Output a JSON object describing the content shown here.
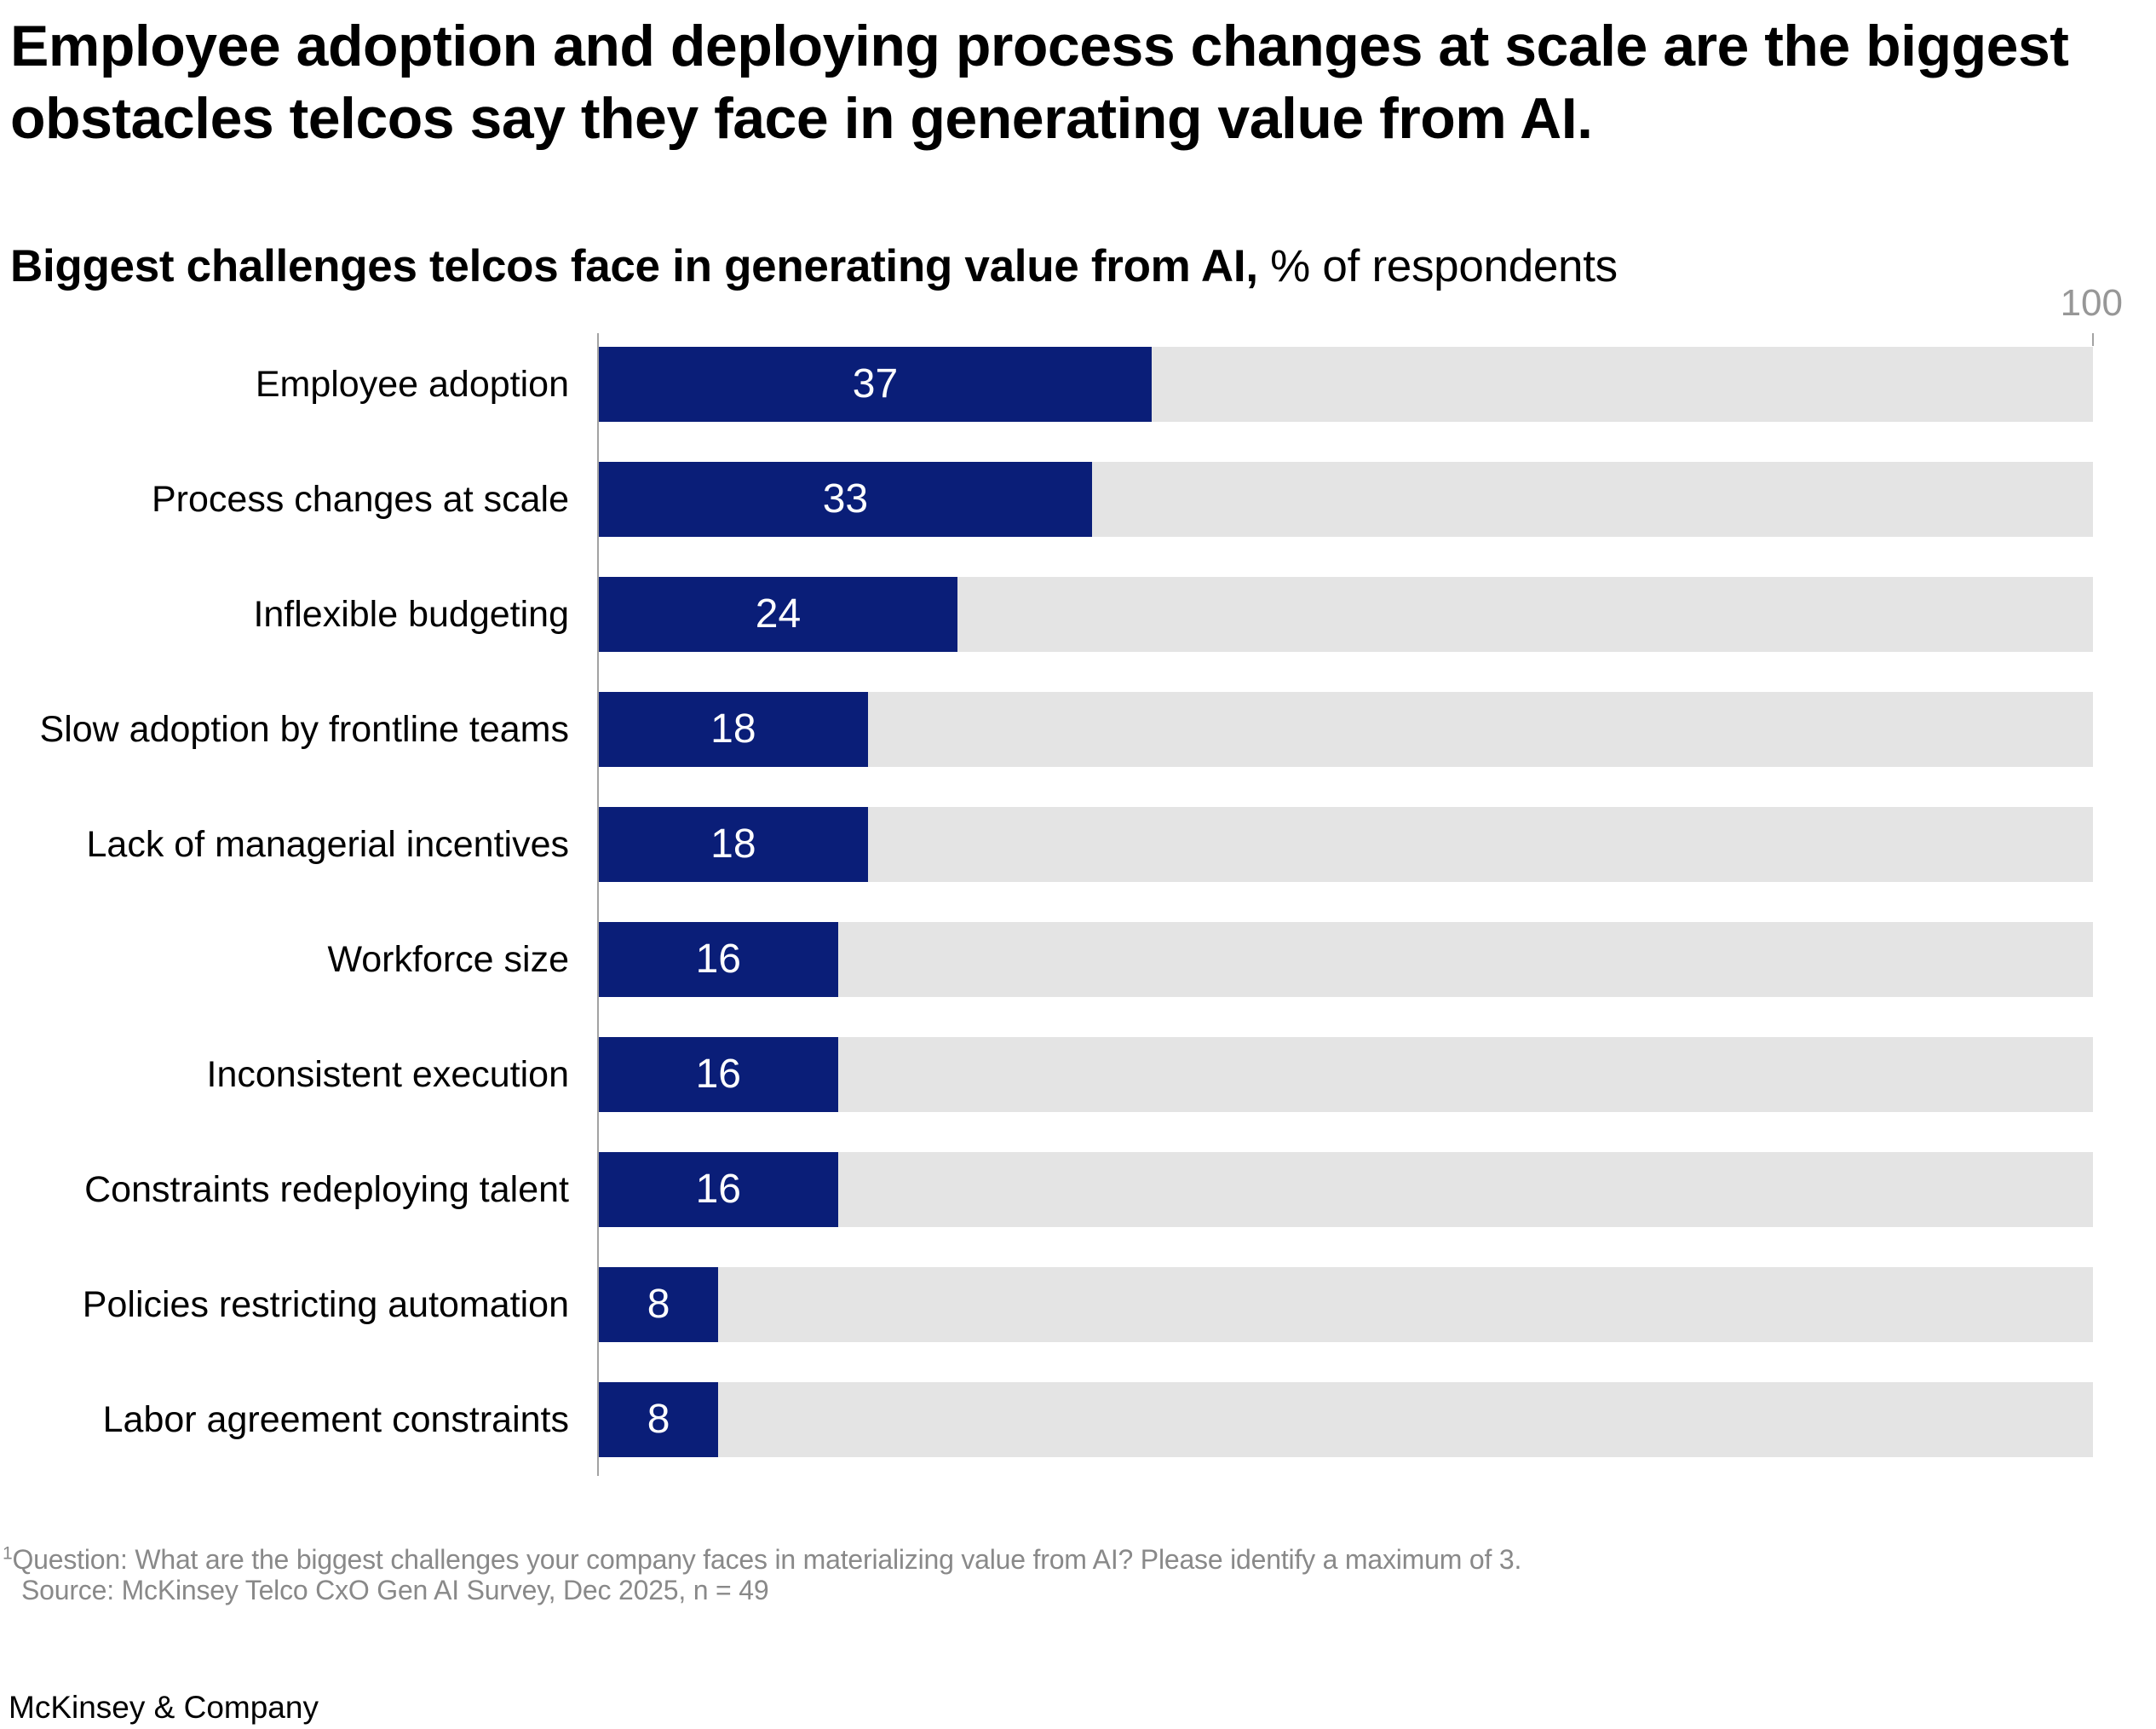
{
  "title_line1": "Employee adoption and deploying process changes at scale are the biggest",
  "title_line2": "obstacles telcos say they face in generating value from AI.",
  "subtitle_bold": "Biggest challenges telcos face in generating value from AI,",
  "subtitle_regular": " % of respondents",
  "axis_max_label": "100",
  "chart_data": {
    "type": "bar",
    "orientation": "horizontal",
    "title": "Biggest challenges telcos face in generating value from AI, % of respondents",
    "xlabel": "% of respondents",
    "ylabel": "",
    "xlim": [
      0,
      100
    ],
    "grid": false,
    "legend": "none",
    "categories": [
      "Employee adoption",
      "Process changes at scale",
      "Inflexible budgeting",
      "Slow adoption by frontline teams",
      "Lack of managerial incentives",
      "Workforce size",
      "Inconsistent execution",
      "Constraints redeploying talent",
      "Policies restricting automation",
      "Labor agreement constraints"
    ],
    "values": [
      37,
      33,
      24,
      18,
      18,
      16,
      16,
      16,
      8,
      8
    ]
  },
  "colors": {
    "bar_fill": "#0a1e78",
    "bar_track": "#e4e4e4",
    "axis_gray": "#a3a3a3",
    "tick_label_gray": "#979797",
    "footnote_gray": "#898989",
    "text_black": "#000000",
    "value_label_white": "#ffffff"
  },
  "footnote": {
    "superscript": "1",
    "line1": "Question: What are the biggest challenges your company faces in materializing value from AI? Please identify a maximum of 3.",
    "line2": "Source: McKinsey Telco CxO Gen AI Survey, Dec 2025, n = 49"
  },
  "footer": "McKinsey & Company"
}
